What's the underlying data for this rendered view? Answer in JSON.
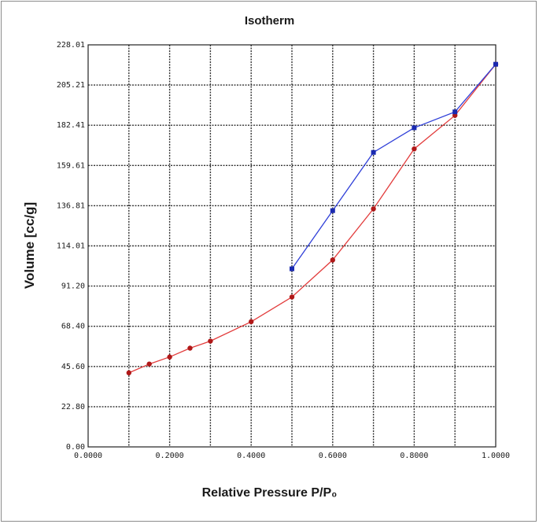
{
  "chart_data": {
    "type": "line",
    "title": "Isotherm",
    "xlabel": "Relative Pressure P/P₀",
    "ylabel": "Volume [cc/g]",
    "xlim": [
      0,
      1
    ],
    "ylim": [
      0,
      228.01
    ],
    "x_ticks": [
      0,
      0.2,
      0.4,
      0.6,
      0.8,
      1.0
    ],
    "x_tick_labels": [
      "0.0000",
      "0.2000",
      "0.4000",
      "0.6000",
      "0.8000",
      "1.0000"
    ],
    "y_ticks": [
      0,
      22.8,
      45.6,
      68.4,
      91.2,
      114.01,
      136.81,
      159.61,
      182.41,
      205.21,
      228.01
    ],
    "y_tick_labels": [
      "0.00",
      "22.80",
      "45.60",
      "68.40",
      "91.20",
      "114.01",
      "136.81",
      "159.61",
      "182.41",
      "205.21",
      "228.01"
    ],
    "grid": true,
    "grid_x_step": 0.1,
    "series": [
      {
        "color": "#e23c3c",
        "marker_color": "#b01818",
        "marker": "circle",
        "x": [
          0.1,
          0.15,
          0.2,
          0.25,
          0.3,
          0.4,
          0.5,
          0.6,
          0.7,
          0.8,
          0.9,
          1.0
        ],
        "y": [
          42,
          47,
          51,
          56,
          60,
          71,
          85,
          106,
          135,
          169,
          188,
          217
        ]
      },
      {
        "color": "#2f3fd8",
        "marker_color": "#1a2ab0",
        "marker": "square",
        "x": [
          0.5,
          0.6,
          0.7,
          0.8,
          0.9,
          1.0
        ],
        "y": [
          101,
          134,
          167,
          181,
          190,
          217
        ]
      }
    ]
  }
}
